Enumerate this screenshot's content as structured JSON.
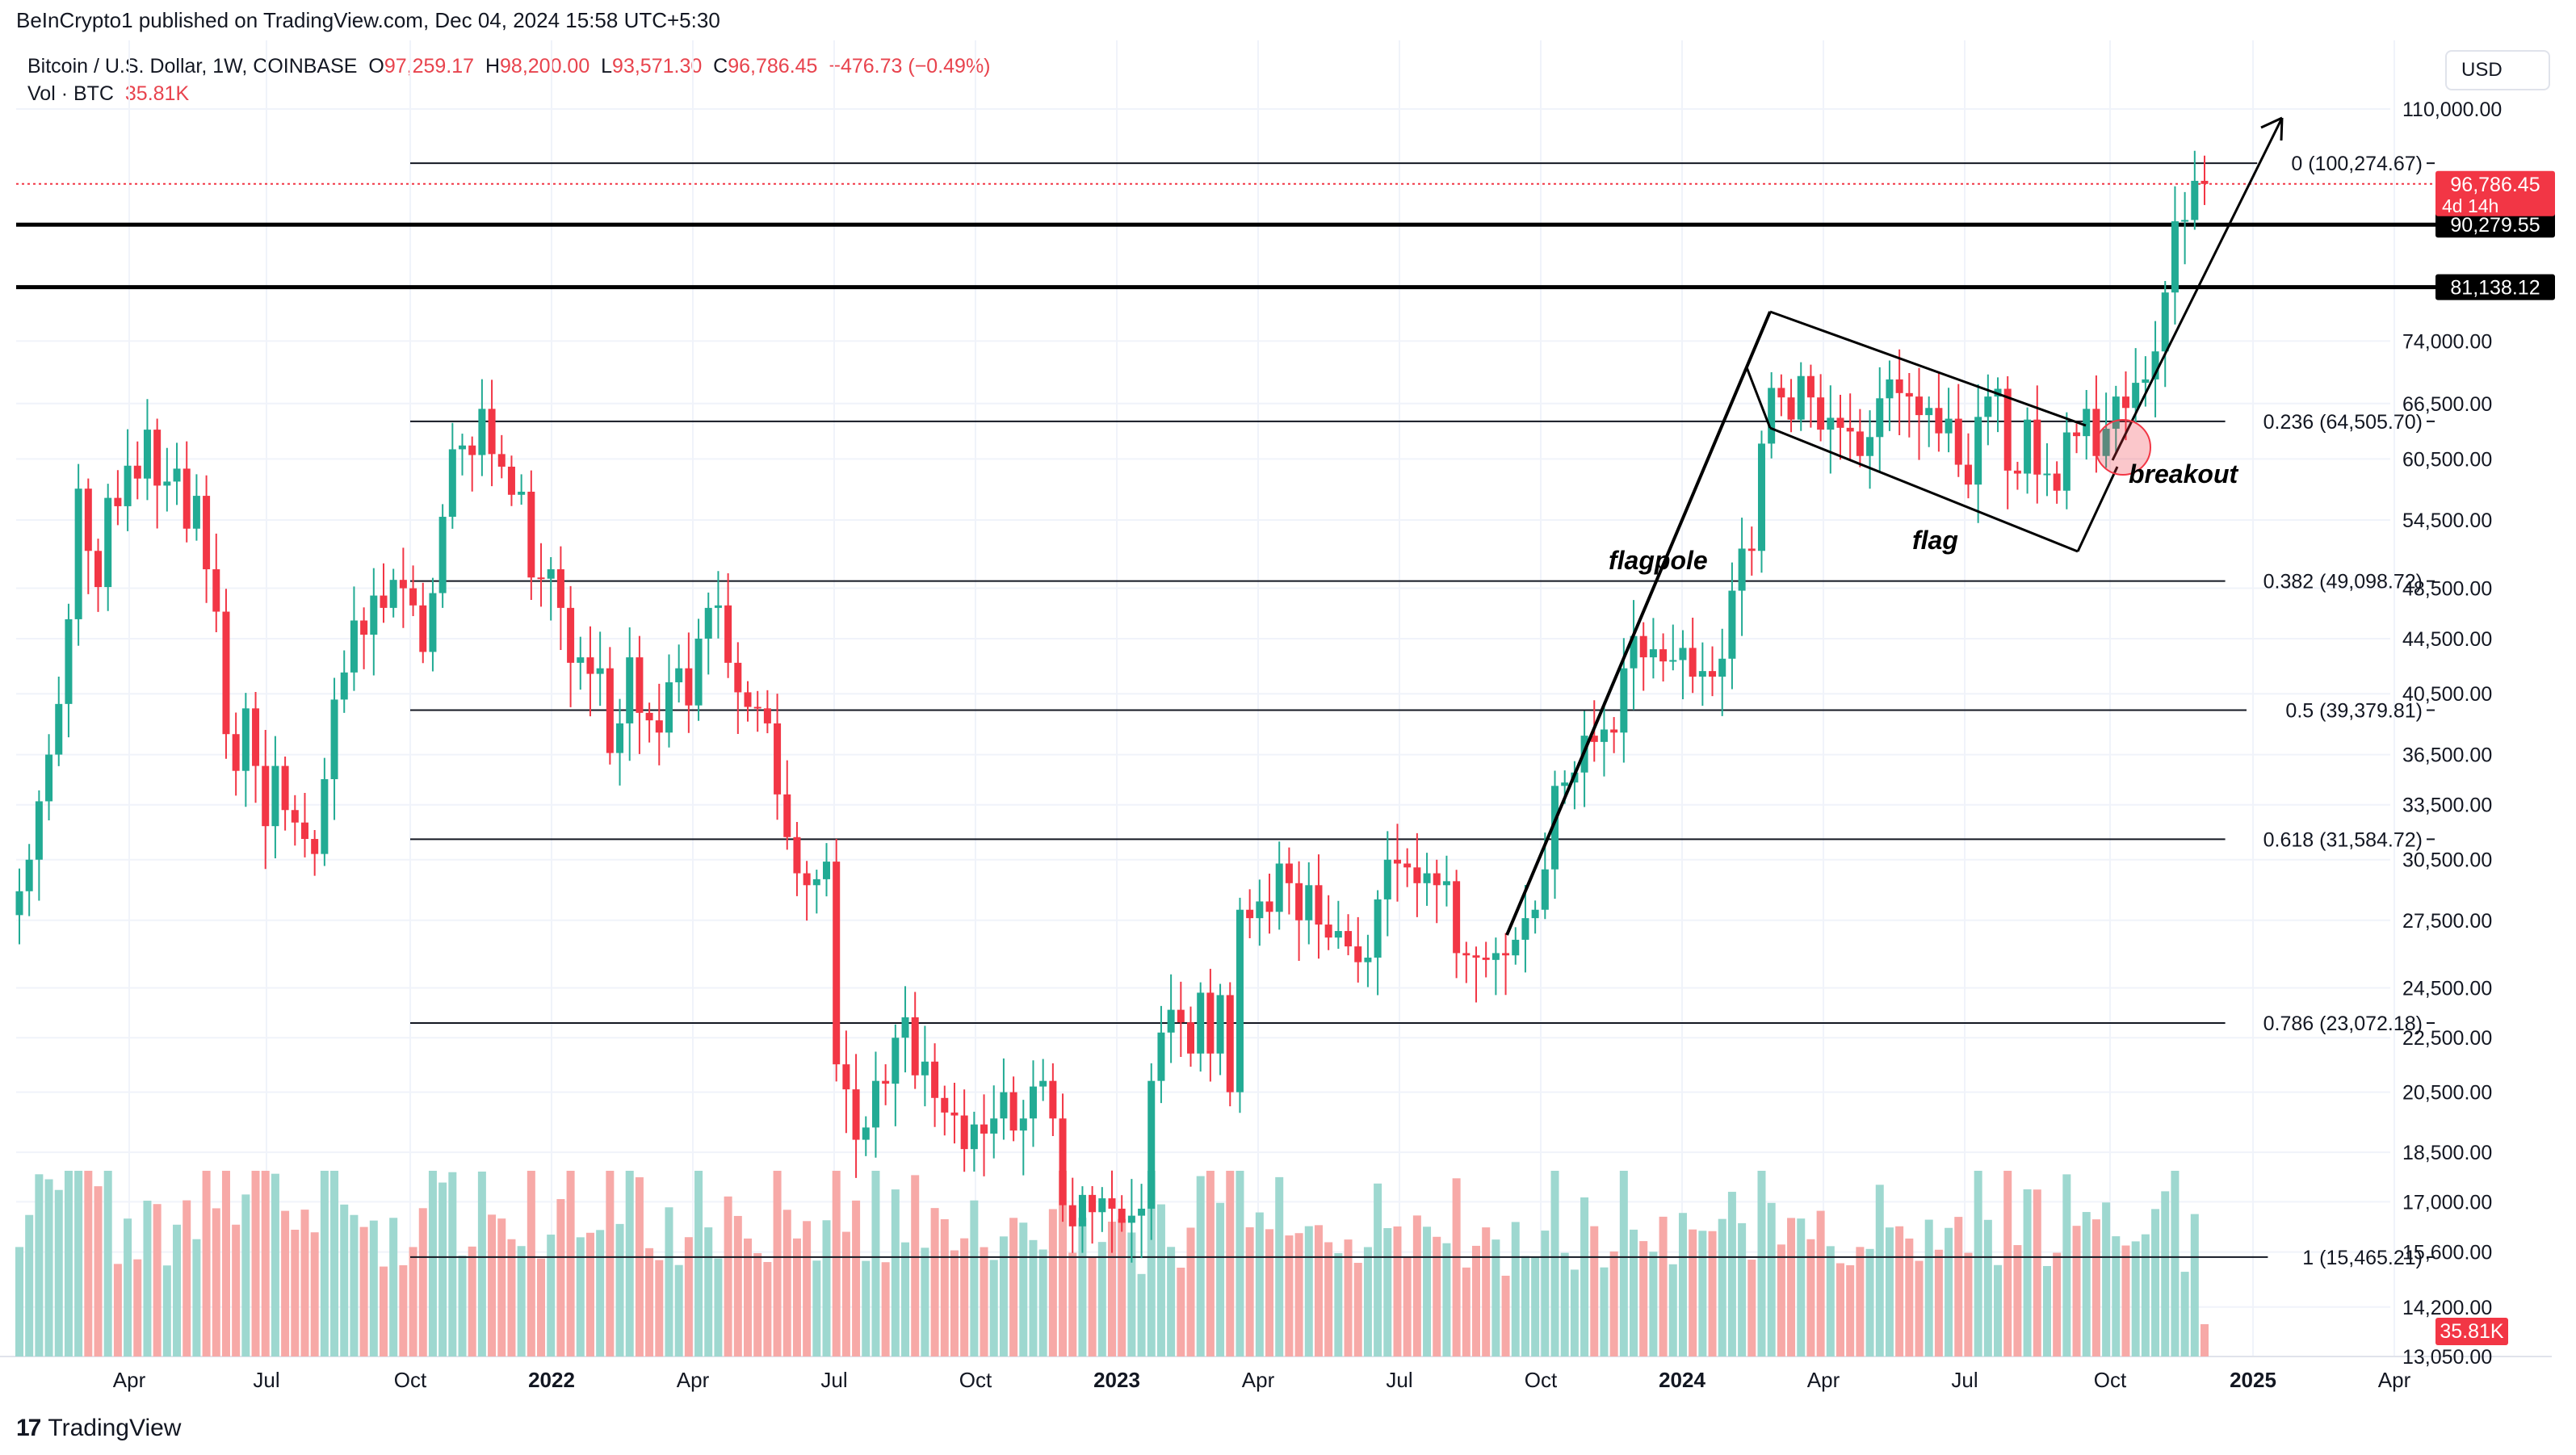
{
  "header": {
    "published_text": "BeInCrypto1 published on TradingView.com, Dec 04, 2024 15:58 UTC+5:30"
  },
  "symbol": {
    "name": "Bitcoin / U.S. Dollar, 1W, COINBASE",
    "o_label": "O",
    "o_value": "97,259.17",
    "h_label": "H",
    "h_value": "98,200.00",
    "l_label": "L",
    "l_value": "93,571.30",
    "c_label": "C",
    "c_value": "96,786.45",
    "change": "−476.73 (−0.49%)",
    "vol_label": "Vol · BTC",
    "vol_value": "35.81K"
  },
  "currency_button": "USD",
  "footer": {
    "logo_mark": "17",
    "brand": "TradingView"
  },
  "colors": {
    "up": "#22ab94",
    "down": "#f23645",
    "up_vol": "#9ed8d0",
    "down_vol": "#f7a9a7",
    "grid": "#f0f3fa",
    "axis_text": "#131722"
  },
  "chart_data": {
    "type": "candlestick",
    "scale": "log",
    "ylim": [
      13050,
      122000
    ],
    "y_ticks": [
      "110,000.00",
      "74,000.00",
      "66,500.00",
      "60,500.00",
      "54,500.00",
      "48,500.00",
      "44,500.00",
      "40,500.00",
      "36,500.00",
      "33,500.00",
      "30,500.00",
      "27,500.00",
      "24,500.00",
      "22,500.00",
      "20,500.00",
      "18,500.00",
      "17,000.00",
      "15,600.00",
      "14,200.00",
      "13,050.00"
    ],
    "x_ticks": [
      "Apr",
      "Jul",
      "Oct",
      "2022",
      "Apr",
      "Jul",
      "Oct",
      "2023",
      "Apr",
      "Jul",
      "Oct",
      "2024",
      "Apr",
      "Jul",
      "Oct",
      "2025",
      "Apr"
    ],
    "x_ticks_bold": [
      "2022",
      "2023",
      "2024",
      "2025"
    ],
    "last_price": {
      "price": "96,786.45",
      "countdown": "4d 14h"
    },
    "horizontal_levels": [
      {
        "price": "90,279.55"
      },
      {
        "price": "81,138.12"
      }
    ],
    "volume_badge": "35.81K",
    "fibonacci": [
      {
        "label": "0 (100,274.67)",
        "price": 100274.67
      },
      {
        "label": "0.236 (64,505.70)",
        "price": 64505.7
      },
      {
        "label": "0.382 (49,098.72)",
        "price": 49098.72
      },
      {
        "label": "0.5 (39,379.81)",
        "price": 39379.81
      },
      {
        "label": "0.618 (31,584.72)",
        "price": 31584.72
      },
      {
        "label": "0.786 (23,072.18)",
        "price": 23072.18
      },
      {
        "label": "1 (15,465.21)",
        "price": 15465.21
      }
    ],
    "annotations": [
      "flagpole",
      "flag",
      "breakout"
    ],
    "weekly_close_approx": [
      28900,
      30500,
      33700,
      36500,
      39800,
      46000,
      57500,
      51700,
      48600,
      56600,
      55800,
      59800,
      58500,
      63600,
      57800,
      58200,
      59500,
      53700,
      56800,
      50100,
      46600,
      37800,
      35500,
      39500,
      35800,
      32300,
      35800,
      33200,
      32500,
      31600,
      30800,
      35000,
      40100,
      42000,
      45900,
      44800,
      47900,
      46900,
      49200,
      48500,
      47100,
      43500,
      48100,
      54800,
      61500,
      61900,
      60900,
      65900,
      61000,
      59700,
      56900,
      57200,
      49400,
      49300,
      50100,
      46900,
      42700,
      43100,
      41900,
      42300,
      36600,
      38500,
      43100,
      39200,
      38700,
      37900,
      41300,
      42300,
      39700,
      44500,
      46900,
      47100,
      42700,
      40600,
      39600,
      39500,
      38500,
      34100,
      31700,
      29800,
      29200,
      29500,
      30400,
      21500,
      20600,
      18900,
      19300,
      20900,
      20800,
      22500,
      23300,
      21100,
      21600,
      20300,
      19800,
      19700,
      18600,
      19400,
      19100,
      19600,
      20500,
      19200,
      19600,
      20700,
      20900,
      19600,
      16900,
      16300,
      17200,
      16700,
      17100,
      16800,
      16400,
      16600,
      16800,
      20900,
      22700,
      23600,
      23100,
      21900,
      24300,
      21900,
      24200,
      20500,
      28000,
      27600,
      28400,
      27900,
      30300,
      29300,
      27500,
      29200,
      27300,
      26700,
      27000,
      26300,
      25600,
      25800,
      28500,
      30500,
      30300,
      30100,
      29300,
      29800,
      29200,
      29400,
      26000,
      25900,
      25800,
      25700,
      26000,
      25900,
      26600,
      27600,
      28000,
      30000,
      34600,
      34800,
      35400,
      37700,
      37300,
      38100,
      37900,
      42300,
      44700,
      43100,
      43700,
      42800,
      42900,
      43800,
      41700,
      42100,
      41700,
      43000,
      48300,
      51900,
      51700,
      62100,
      68300,
      67200,
      64700,
      69700,
      67200,
      63600,
      64900,
      63800,
      63400,
      60800,
      62800,
      67100,
      69300,
      67700,
      67300,
      65200,
      66000,
      63200,
      64800,
      59900,
      57900,
      65000,
      67300,
      68200,
      59300,
      59000,
      64700,
      58900,
      59000,
      57300,
      63300,
      62900,
      65900,
      60800,
      63700,
      67300,
      66000,
      68900,
      69300,
      72700,
      80400,
      90800,
      91000,
      97300,
      96786
    ]
  }
}
